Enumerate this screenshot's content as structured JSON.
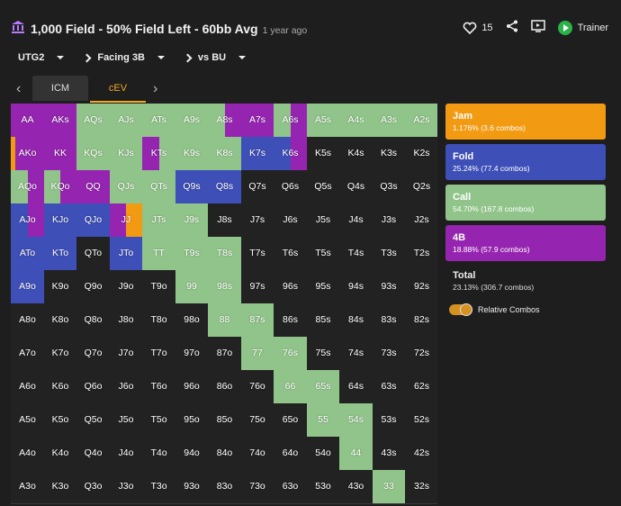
{
  "header": {
    "title": "1,000 Field - 50% Field Left - 60bb Avg",
    "age": "1 year ago",
    "likes": "15",
    "trainer_label": "Trainer"
  },
  "selectors": {
    "position": "UTG2",
    "action": "Facing 3B",
    "versus": "vs BU"
  },
  "tabs": [
    "ICM",
    "cEV"
  ],
  "colors": {
    "jam": "#f39a13",
    "fold": "#3e4fb7",
    "call": "#91c48a",
    "fourbet": "#9525b0",
    "empty": "#222222"
  },
  "grid": {
    "rows": [
      [
        "AA",
        "AKs",
        "AQs",
        "AJs",
        "ATs",
        "A9s",
        "A8s",
        "A7s",
        "A6s",
        "A5s",
        "A4s",
        "A3s",
        "A2s"
      ],
      [
        "AKo",
        "KK",
        "KQs",
        "KJs",
        "KTs",
        "K9s",
        "K8s",
        "K7s",
        "K6s",
        "K5s",
        "K4s",
        "K3s",
        "K2s"
      ],
      [
        "AQo",
        "KQo",
        "QQ",
        "QJs",
        "QTs",
        "Q9s",
        "Q8s",
        "Q7s",
        "Q6s",
        "Q5s",
        "Q4s",
        "Q3s",
        "Q2s"
      ],
      [
        "AJo",
        "KJo",
        "QJo",
        "JJ",
        "JTs",
        "J9s",
        "J8s",
        "J7s",
        "J6s",
        "J5s",
        "J4s",
        "J3s",
        "J2s"
      ],
      [
        "ATo",
        "KTo",
        "QTo",
        "JTo",
        "TT",
        "T9s",
        "T8s",
        "T7s",
        "T6s",
        "T5s",
        "T4s",
        "T3s",
        "T2s"
      ],
      [
        "A9o",
        "K9o",
        "Q9o",
        "J9o",
        "T9o",
        "99",
        "98s",
        "97s",
        "96s",
        "95s",
        "94s",
        "93s",
        "92s"
      ],
      [
        "A8o",
        "K8o",
        "Q8o",
        "J8o",
        "T8o",
        "98o",
        "88",
        "87s",
        "86s",
        "85s",
        "84s",
        "83s",
        "82s"
      ],
      [
        "A7o",
        "K7o",
        "Q7o",
        "J7o",
        "T7o",
        "97o",
        "87o",
        "77",
        "76s",
        "75s",
        "74s",
        "73s",
        "72s"
      ],
      [
        "A6o",
        "K6o",
        "Q6o",
        "J6o",
        "T6o",
        "96o",
        "86o",
        "76o",
        "66",
        "65s",
        "64s",
        "63s",
        "62s"
      ],
      [
        "A5o",
        "K5o",
        "Q5o",
        "J5o",
        "T5o",
        "95o",
        "85o",
        "75o",
        "65o",
        "55",
        "54s",
        "53s",
        "52s"
      ],
      [
        "A4o",
        "K4o",
        "Q4o",
        "J4o",
        "T4o",
        "94o",
        "84o",
        "74o",
        "64o",
        "54o",
        "44",
        "43s",
        "42s"
      ],
      [
        "A3o",
        "K3o",
        "Q3o",
        "J3o",
        "T3o",
        "93o",
        "83o",
        "73o",
        "63o",
        "53o",
        "43o",
        "33",
        "32s"
      ]
    ],
    "freqs": [
      [
        "P",
        "P",
        "C",
        "C",
        "C",
        "C",
        "C1P1",
        "P",
        "C1P1",
        "C",
        "C",
        "C",
        "C"
      ],
      [
        "J1P6",
        "P",
        "C",
        "C",
        "P1C1",
        "C",
        "C",
        "F",
        "F1P1",
        "E",
        "E",
        "E",
        "E"
      ],
      [
        "C1P1",
        "C1P1",
        "P",
        "C",
        "C",
        "F",
        "F",
        "E",
        "E",
        "E",
        "E",
        "E",
        "E"
      ],
      [
        "F1P1",
        "F",
        "F",
        "P1J1",
        "C",
        "C",
        "E",
        "E",
        "E",
        "E",
        "E",
        "E",
        "E"
      ],
      [
        "F",
        "F",
        "E",
        "F",
        "C",
        "C",
        "C",
        "E",
        "E",
        "E",
        "E",
        "E",
        "E"
      ],
      [
        "F",
        "E",
        "E",
        "E",
        "E",
        "C",
        "C",
        "E",
        "E",
        "E",
        "E",
        "E",
        "E"
      ],
      [
        "E",
        "E",
        "E",
        "E",
        "E",
        "E",
        "C",
        "C",
        "E",
        "E",
        "E",
        "E",
        "E"
      ],
      [
        "E",
        "E",
        "E",
        "E",
        "E",
        "E",
        "E",
        "C",
        "C",
        "E",
        "E",
        "E",
        "E"
      ],
      [
        "E",
        "E",
        "E",
        "E",
        "E",
        "E",
        "E",
        "E",
        "C",
        "C",
        "E",
        "E",
        "E"
      ],
      [
        "E",
        "E",
        "E",
        "E",
        "E",
        "E",
        "E",
        "E",
        "E",
        "C",
        "C",
        "E",
        "E"
      ],
      [
        "E",
        "E",
        "E",
        "E",
        "E",
        "E",
        "E",
        "E",
        "E",
        "E",
        "C",
        "E",
        "E"
      ],
      [
        "E",
        "E",
        "E",
        "E",
        "E",
        "E",
        "E",
        "E",
        "E",
        "E",
        "E",
        "C",
        "E"
      ]
    ]
  },
  "legend": [
    {
      "name": "Jam",
      "stat": "1.176% (3.6 combos)",
      "color": "#f39a13"
    },
    {
      "name": "Fold",
      "stat": "25.24% (77.4 combos)",
      "color": "#3e4fb7"
    },
    {
      "name": "Call",
      "stat": "54.70% (167.8 combos)",
      "color": "#91c48a"
    },
    {
      "name": "4B",
      "stat": "18.88% (57.9 combos)",
      "color": "#9525b0"
    }
  ],
  "total": {
    "name": "Total",
    "stat": "23.13% (306.7 combos)"
  },
  "toggle_label": "Relative Combos"
}
